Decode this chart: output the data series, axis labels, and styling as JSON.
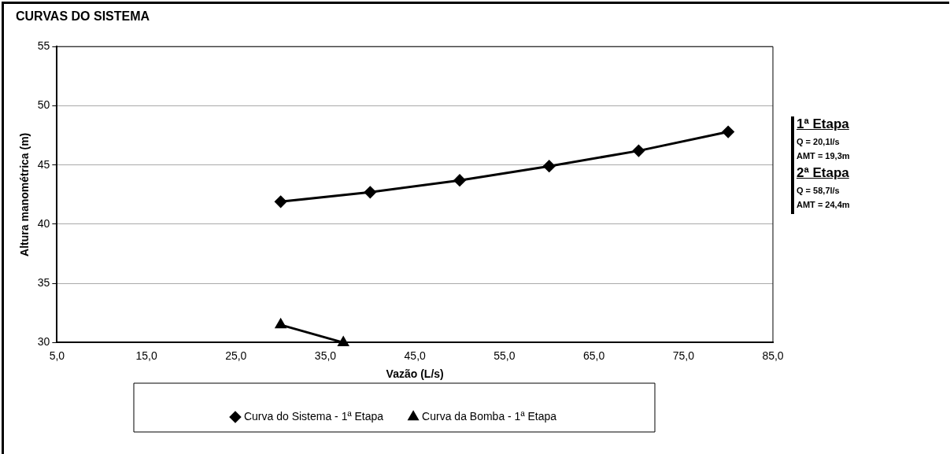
{
  "chart_data": {
    "type": "line",
    "title": "CURVAS DO SISTEMA",
    "xlabel": "Vazão (L/s)",
    "ylabel": "Altura manométrica (m)",
    "xlim": [
      5,
      85
    ],
    "xticks": [
      {
        "value": 5,
        "label": "5,0"
      },
      {
        "value": 15,
        "label": "15,0"
      },
      {
        "value": 25,
        "label": "25,0"
      },
      {
        "value": 35,
        "label": "35,0"
      },
      {
        "value": 45,
        "label": "45,0"
      },
      {
        "value": 55,
        "label": "55,0"
      },
      {
        "value": 65,
        "label": "65,0"
      },
      {
        "value": 75,
        "label": "75,0"
      },
      {
        "value": 85,
        "label": "85,0"
      }
    ],
    "ylim": [
      30,
      55
    ],
    "yticks": [
      30,
      35,
      40,
      45,
      50,
      55
    ],
    "grid": "y",
    "legend": "bottom",
    "line_style": "solid",
    "series": [
      {
        "name": "Curva do Sistema - 1ª Etapa",
        "color": "#000000",
        "marker": "diamond",
        "x": [
          30,
          40,
          50,
          60,
          70,
          80
        ],
        "values": [
          41.9,
          42.7,
          43.7,
          44.9,
          46.2,
          47.8
        ]
      },
      {
        "name": "Curva da Bomba - 1ª Etapa",
        "color": "#000000",
        "marker": "triangle",
        "x": [
          30,
          37
        ],
        "values": [
          31.5,
          30
        ]
      }
    ],
    "annotations": [
      "1ª Etapa",
      "Q = 20,1l/s",
      "AMT = 19,3m",
      "2ª Etapa",
      "Q = 58,7l/s",
      "AMT = 24,4m"
    ]
  }
}
